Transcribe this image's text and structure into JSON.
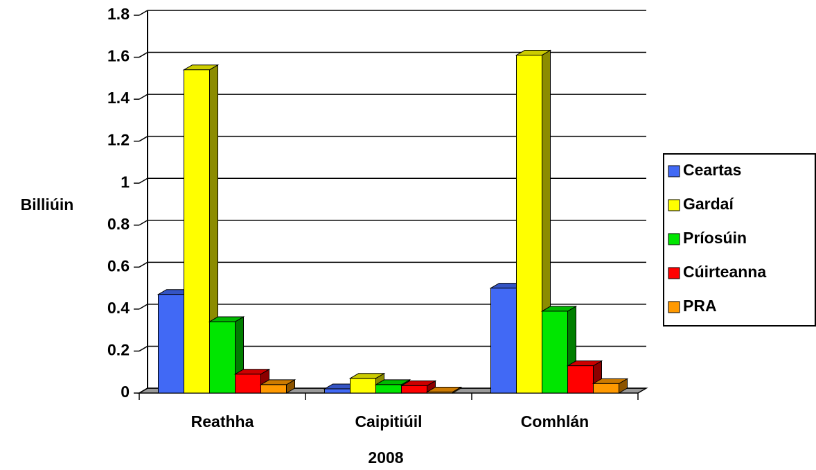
{
  "chart_data": {
    "type": "bar3d",
    "x_label": "2008",
    "y_label": "Billiúin",
    "categories": [
      "Reathha",
      "Caipitiúil",
      "Comhlán"
    ],
    "series": [
      {
        "name": "Ceartas",
        "color": "#4169f5",
        "values": [
          0.47,
          0.02,
          0.5
        ]
      },
      {
        "name": "Gardaí",
        "color": "#ffff00",
        "values": [
          1.54,
          0.07,
          1.61
        ]
      },
      {
        "name": "Príosúin",
        "color": "#00e600",
        "values": [
          0.34,
          0.04,
          0.39
        ]
      },
      {
        "name": "Cúirteanna",
        "color": "#ff0000",
        "values": [
          0.09,
          0.035,
          0.13
        ]
      },
      {
        "name": "PRA",
        "color": "#ff9900",
        "values": [
          0.04,
          0.005,
          0.045
        ]
      }
    ],
    "ylim": [
      0,
      1.8
    ],
    "yticks": [
      0,
      0.2,
      0.4,
      0.6,
      0.8,
      1,
      1.2,
      1.4,
      1.6,
      1.8
    ],
    "grid": true,
    "legend": "right"
  }
}
